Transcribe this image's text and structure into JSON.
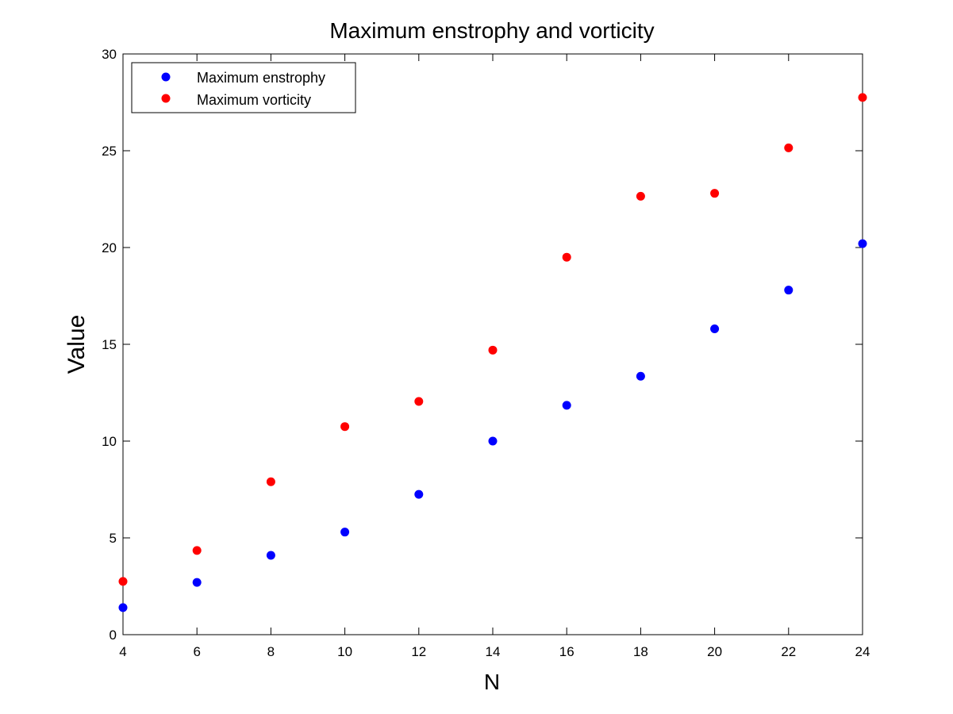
{
  "chart_data": {
    "type": "scatter",
    "title": "Maximum enstrophy and vorticity",
    "xlabel": "N",
    "ylabel": "Value",
    "xlim": [
      4,
      24
    ],
    "ylim": [
      0,
      30
    ],
    "xticks": [
      4,
      6,
      8,
      10,
      12,
      14,
      16,
      18,
      20,
      22,
      24
    ],
    "yticks": [
      0,
      5,
      10,
      15,
      20,
      25,
      30
    ],
    "grid": false,
    "legend_position": "top-left",
    "x": [
      4,
      6,
      8,
      10,
      12,
      14,
      16,
      18,
      20,
      22,
      24
    ],
    "series": [
      {
        "name": "Maximum enstrophy",
        "color": "#0000ff",
        "values": [
          1.4,
          2.7,
          4.1,
          5.3,
          7.25,
          10.0,
          11.85,
          13.35,
          15.8,
          17.8,
          20.2
        ]
      },
      {
        "name": "Maximum vorticity",
        "color": "#ff0000",
        "values": [
          2.75,
          4.35,
          7.9,
          10.75,
          12.05,
          14.7,
          19.5,
          22.65,
          22.8,
          25.15,
          27.75
        ]
      }
    ]
  }
}
